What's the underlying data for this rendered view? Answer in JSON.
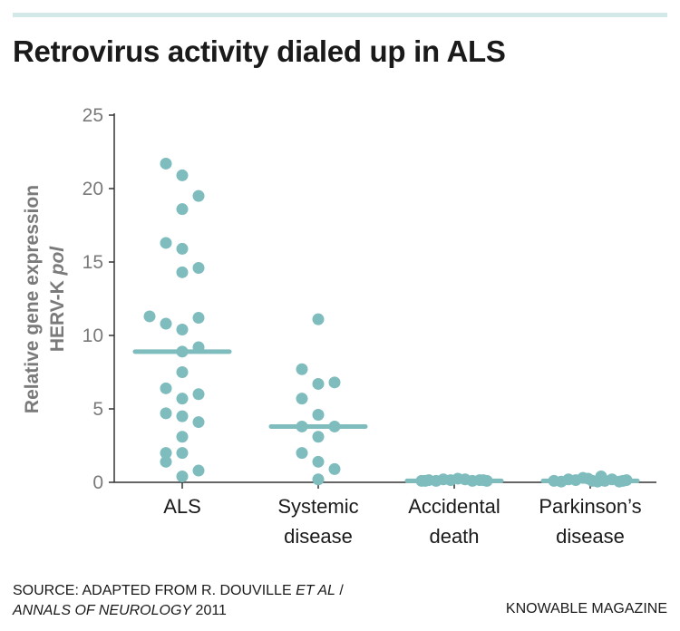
{
  "title": "Retrovirus activity dialed up in ALS",
  "source_line1": "SOURCE: ADAPTED FROM R. DOUVILLE ",
  "source_line1_italic": "ET AL",
  "source_line1_end": " /",
  "source_line2_italic": "ANNALS OF NEUROLOGY",
  "source_line2_end": " 2011",
  "brand": "KNOWABLE MAGAZINE",
  "colors": {
    "points": "#7fbcbd",
    "axis": "#333333",
    "topbar": "#d3e8e8"
  },
  "chart_data": {
    "type": "scatter",
    "title": "Retrovirus activity dialed up in ALS",
    "ylabel_line1": "Relative gene expression",
    "ylabel_line2": "HERV-K ",
    "ylabel_line2_italic": "pol",
    "ylim": [
      0,
      25
    ],
    "yticks": [
      "0",
      "5",
      "10",
      "15",
      "20",
      "25"
    ],
    "grid": false,
    "categories": [
      {
        "line1": "ALS",
        "line2": ""
      },
      {
        "line1": "Systemic",
        "line2": "disease"
      },
      {
        "line1": "Accidental",
        "line2": "death"
      },
      {
        "line1": "Parkinson’s",
        "line2": "disease"
      }
    ],
    "series": [
      {
        "values": [
          21.7,
          20.9,
          19.5,
          18.6,
          16.3,
          15.9,
          14.6,
          14.3,
          11.3,
          10.8,
          10.4,
          11.2,
          9.2,
          8.9,
          7.5,
          6.4,
          6.0,
          5.7,
          4.7,
          4.5,
          4.1,
          3.1,
          2.0,
          2.0,
          1.4,
          0.8,
          0.4
        ],
        "median": 8.9
      },
      {
        "values": [
          11.1,
          7.7,
          6.7,
          6.8,
          5.7,
          4.6,
          3.8,
          3.8,
          3.1,
          2.0,
          1.4,
          0.9,
          0.2
        ],
        "median": 3.8
      },
      {
        "values": [
          0.1,
          0.15,
          0.1,
          0.2,
          0.15,
          0.25,
          0.2,
          0.1,
          0.15,
          0.1,
          0.1,
          0.15
        ],
        "median": 0.1
      },
      {
        "values": [
          0.1,
          0.05,
          0.2,
          0.15,
          0.3,
          0.25,
          0.1,
          0.05,
          0.4,
          0.1,
          0.2,
          0.05,
          0.1,
          0.15
        ],
        "median": 0.1
      }
    ]
  }
}
